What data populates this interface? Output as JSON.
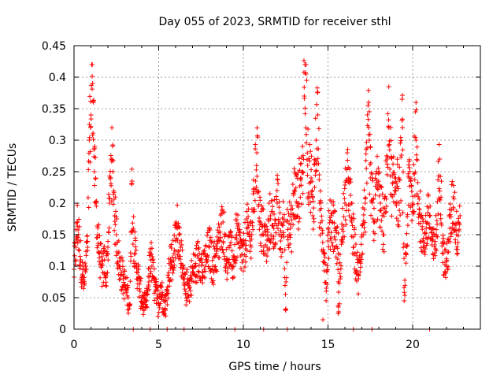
{
  "chart_data": {
    "type": "scatter",
    "title": "Day 055 of 2023, SRMTID for receiver sthl",
    "xlabel": "GPS time / hours",
    "ylabel": "SRMTID / TECUs",
    "xlim": [
      0,
      24
    ],
    "ylim": [
      0,
      0.45
    ],
    "xticks": [
      0,
      5,
      10,
      15,
      20
    ],
    "xtick_labels": [
      "0",
      "5",
      "10",
      "15",
      "20"
    ],
    "yticks": [
      0,
      0.05,
      0.1,
      0.15,
      0.2,
      0.25,
      0.3,
      0.35,
      0.4,
      0.45
    ],
    "ytick_labels": [
      "0",
      "0.05",
      "0.1",
      "0.15",
      "0.2",
      "0.25",
      "0.3",
      "0.35",
      "0.4",
      "0.45"
    ],
    "grid": true,
    "marker": "+",
    "color": "#ff0000",
    "series": [
      {
        "name": "SRMTID",
        "points": [
          [
            0.0,
            0.095
          ],
          [
            0.1,
            0.13
          ],
          [
            0.2,
            0.17
          ],
          [
            0.3,
            0.14
          ],
          [
            0.4,
            0.11
          ],
          [
            0.5,
            0.085
          ],
          [
            0.6,
            0.07
          ],
          [
            0.7,
            0.1
          ],
          [
            0.8,
            0.13
          ],
          [
            0.9,
            0.3
          ],
          [
            1.0,
            0.34
          ],
          [
            1.05,
            0.42
          ],
          [
            1.1,
            0.39
          ],
          [
            1.15,
            0.36
          ],
          [
            1.2,
            0.25
          ],
          [
            1.3,
            0.2
          ],
          [
            1.4,
            0.15
          ],
          [
            1.5,
            0.12
          ],
          [
            1.6,
            0.1
          ],
          [
            1.7,
            0.09
          ],
          [
            1.8,
            0.11
          ],
          [
            1.9,
            0.085
          ],
          [
            2.0,
            0.13
          ],
          [
            2.1,
            0.2
          ],
          [
            2.2,
            0.27
          ],
          [
            2.3,
            0.25
          ],
          [
            2.4,
            0.18
          ],
          [
            2.5,
            0.15
          ],
          [
            2.6,
            0.12
          ],
          [
            2.7,
            0.1
          ],
          [
            2.8,
            0.09
          ],
          [
            2.9,
            0.08
          ],
          [
            3.0,
            0.07
          ],
          [
            3.1,
            0.06
          ],
          [
            3.2,
            0.05
          ],
          [
            3.3,
            0.04
          ],
          [
            3.4,
            0.23
          ],
          [
            3.5,
            0.16
          ],
          [
            3.6,
            0.12
          ],
          [
            3.7,
            0.1
          ],
          [
            3.8,
            0.08
          ],
          [
            3.9,
            0.06
          ],
          [
            4.0,
            0.05
          ],
          [
            4.1,
            0.04
          ],
          [
            4.2,
            0.035
          ],
          [
            4.3,
            0.045
          ],
          [
            4.4,
            0.07
          ],
          [
            4.5,
            0.12
          ],
          [
            4.6,
            0.1
          ],
          [
            4.7,
            0.08
          ],
          [
            4.8,
            0.06
          ],
          [
            4.9,
            0.05
          ],
          [
            5.0,
            0.04
          ],
          [
            5.1,
            0.07
          ],
          [
            5.2,
            0.055
          ],
          [
            5.3,
            0.045
          ],
          [
            5.4,
            0.03
          ],
          [
            5.5,
            0.06
          ],
          [
            5.6,
            0.09
          ],
          [
            5.7,
            0.11
          ],
          [
            5.8,
            0.1
          ],
          [
            5.9,
            0.12
          ],
          [
            6.0,
            0.14
          ],
          [
            6.1,
            0.16
          ],
          [
            6.2,
            0.15
          ],
          [
            6.3,
            0.13
          ],
          [
            6.4,
            0.09
          ],
          [
            6.5,
            0.07
          ],
          [
            6.6,
            0.06
          ],
          [
            6.7,
            0.075
          ],
          [
            6.8,
            0.065
          ],
          [
            6.9,
            0.08
          ],
          [
            7.0,
            0.09
          ],
          [
            7.2,
            0.1
          ],
          [
            7.4,
            0.12
          ],
          [
            7.6,
            0.09
          ],
          [
            7.8,
            0.11
          ],
          [
            8.0,
            0.13
          ],
          [
            8.2,
            0.1
          ],
          [
            8.4,
            0.12
          ],
          [
            8.6,
            0.14
          ],
          [
            8.8,
            0.17
          ],
          [
            9.0,
            0.11
          ],
          [
            9.2,
            0.13
          ],
          [
            9.4,
            0.1
          ],
          [
            9.6,
            0.15
          ],
          [
            9.8,
            0.13
          ],
          [
            10.0,
            0.11
          ],
          [
            10.2,
            0.16
          ],
          [
            10.4,
            0.14
          ],
          [
            10.6,
            0.19
          ],
          [
            10.8,
            0.28
          ],
          [
            11.0,
            0.17
          ],
          [
            11.2,
            0.15
          ],
          [
            11.4,
            0.13
          ],
          [
            11.6,
            0.18
          ],
          [
            11.8,
            0.16
          ],
          [
            12.0,
            0.2
          ],
          [
            12.2,
            0.14
          ],
          [
            12.4,
            0.17
          ],
          [
            12.6,
            0.19
          ],
          [
            12.8,
            0.15
          ],
          [
            13.0,
            0.22
          ],
          [
            13.2,
            0.2
          ],
          [
            13.4,
            0.24
          ],
          [
            13.5,
            0.25
          ],
          [
            13.6,
            0.37
          ],
          [
            13.7,
            0.405
          ],
          [
            13.8,
            0.26
          ],
          [
            14.0,
            0.24
          ],
          [
            14.1,
            0.18
          ],
          [
            14.3,
            0.3
          ],
          [
            14.4,
            0.34
          ],
          [
            14.5,
            0.2
          ],
          [
            14.6,
            0.16
          ],
          [
            14.8,
            0.12
          ],
          [
            15.0,
            0.14
          ],
          [
            15.2,
            0.18
          ],
          [
            15.4,
            0.16
          ],
          [
            15.6,
            0.12
          ],
          [
            15.8,
            0.14
          ],
          [
            16.0,
            0.2
          ],
          [
            16.2,
            0.24
          ],
          [
            16.4,
            0.17
          ],
          [
            16.6,
            0.12
          ],
          [
            16.8,
            0.08
          ],
          [
            17.0,
            0.15
          ],
          [
            17.2,
            0.2
          ],
          [
            17.4,
            0.32
          ],
          [
            17.5,
            0.24
          ],
          [
            17.7,
            0.17
          ],
          [
            17.9,
            0.23
          ],
          [
            18.1,
            0.2
          ],
          [
            18.3,
            0.15
          ],
          [
            18.5,
            0.27
          ],
          [
            18.6,
            0.32
          ],
          [
            18.8,
            0.21
          ],
          [
            19.0,
            0.24
          ],
          [
            19.2,
            0.2
          ],
          [
            19.4,
            0.32
          ],
          [
            19.6,
            0.12
          ],
          [
            19.8,
            0.24
          ],
          [
            20.0,
            0.2
          ],
          [
            20.2,
            0.3
          ],
          [
            20.4,
            0.19
          ],
          [
            20.6,
            0.14
          ],
          [
            20.8,
            0.16
          ],
          [
            21.0,
            0.18
          ],
          [
            21.2,
            0.12
          ],
          [
            21.4,
            0.15
          ],
          [
            21.6,
            0.27
          ],
          [
            21.8,
            0.12
          ],
          [
            22.0,
            0.1
          ],
          [
            22.2,
            0.16
          ],
          [
            22.4,
            0.21
          ],
          [
            22.6,
            0.15
          ],
          [
            22.8,
            0.18
          ],
          [
            3.5,
            0.0
          ],
          [
            4.5,
            0.0
          ],
          [
            5.5,
            0.0
          ],
          [
            6.5,
            0.0
          ],
          [
            9.5,
            0.0
          ],
          [
            11.2,
            0.0
          ],
          [
            12.6,
            0.0
          ],
          [
            16.5,
            0.0
          ],
          [
            17.6,
            0.0
          ],
          [
            21.0,
            0.0
          ],
          [
            14.7,
            0.015
          ],
          [
            15.6,
            0.025
          ],
          [
            12.5,
            0.03
          ],
          [
            19.5,
            0.045
          ],
          [
            14.9,
            0.065
          ]
        ]
      }
    ]
  }
}
